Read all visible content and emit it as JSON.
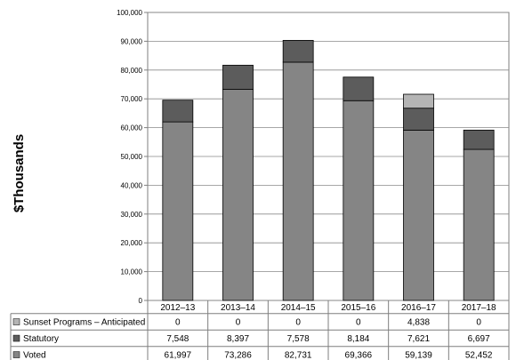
{
  "chart_data": {
    "type": "bar",
    "stacked": true,
    "ylabel": "$Thousands",
    "ylim": [
      0,
      100000
    ],
    "yticks": [
      "0",
      "10,000",
      "20,000",
      "30,000",
      "40,000",
      "50,000",
      "60,000",
      "70,000",
      "80,000",
      "90,000",
      "100,000"
    ],
    "ytick_values": [
      0,
      10000,
      20000,
      30000,
      40000,
      50000,
      60000,
      70000,
      80000,
      90000,
      100000
    ],
    "categories": [
      "2012–13",
      "2013–14",
      "2014–15",
      "2015–16",
      "2016–17",
      "2017–18"
    ],
    "series": [
      {
        "name": "Voted",
        "color": "#858585",
        "values": [
          61997,
          73286,
          82731,
          69366,
          59139,
          52452
        ],
        "labels": [
          "61,997",
          "73,286",
          "82,731",
          "69,366",
          "59,139",
          "52,452"
        ]
      },
      {
        "name": "Statutory",
        "color": "#5c5c5c",
        "values": [
          7548,
          8397,
          7578,
          8184,
          7621,
          6697
        ],
        "labels": [
          "7,548",
          "8,397",
          "7,578",
          "8,184",
          "7,621",
          "6,697"
        ]
      },
      {
        "name": "Sunset Programs – Anticipated",
        "color": "#b4b4b4",
        "values": [
          0,
          0,
          0,
          0,
          4838,
          0
        ],
        "labels": [
          "0",
          "0",
          "0",
          "0",
          "4,838",
          "0"
        ]
      }
    ],
    "table_row_order": [
      "Sunset Programs – Anticipated",
      "Statutory",
      "Voted"
    ],
    "grid": true,
    "legend": "data-table"
  }
}
